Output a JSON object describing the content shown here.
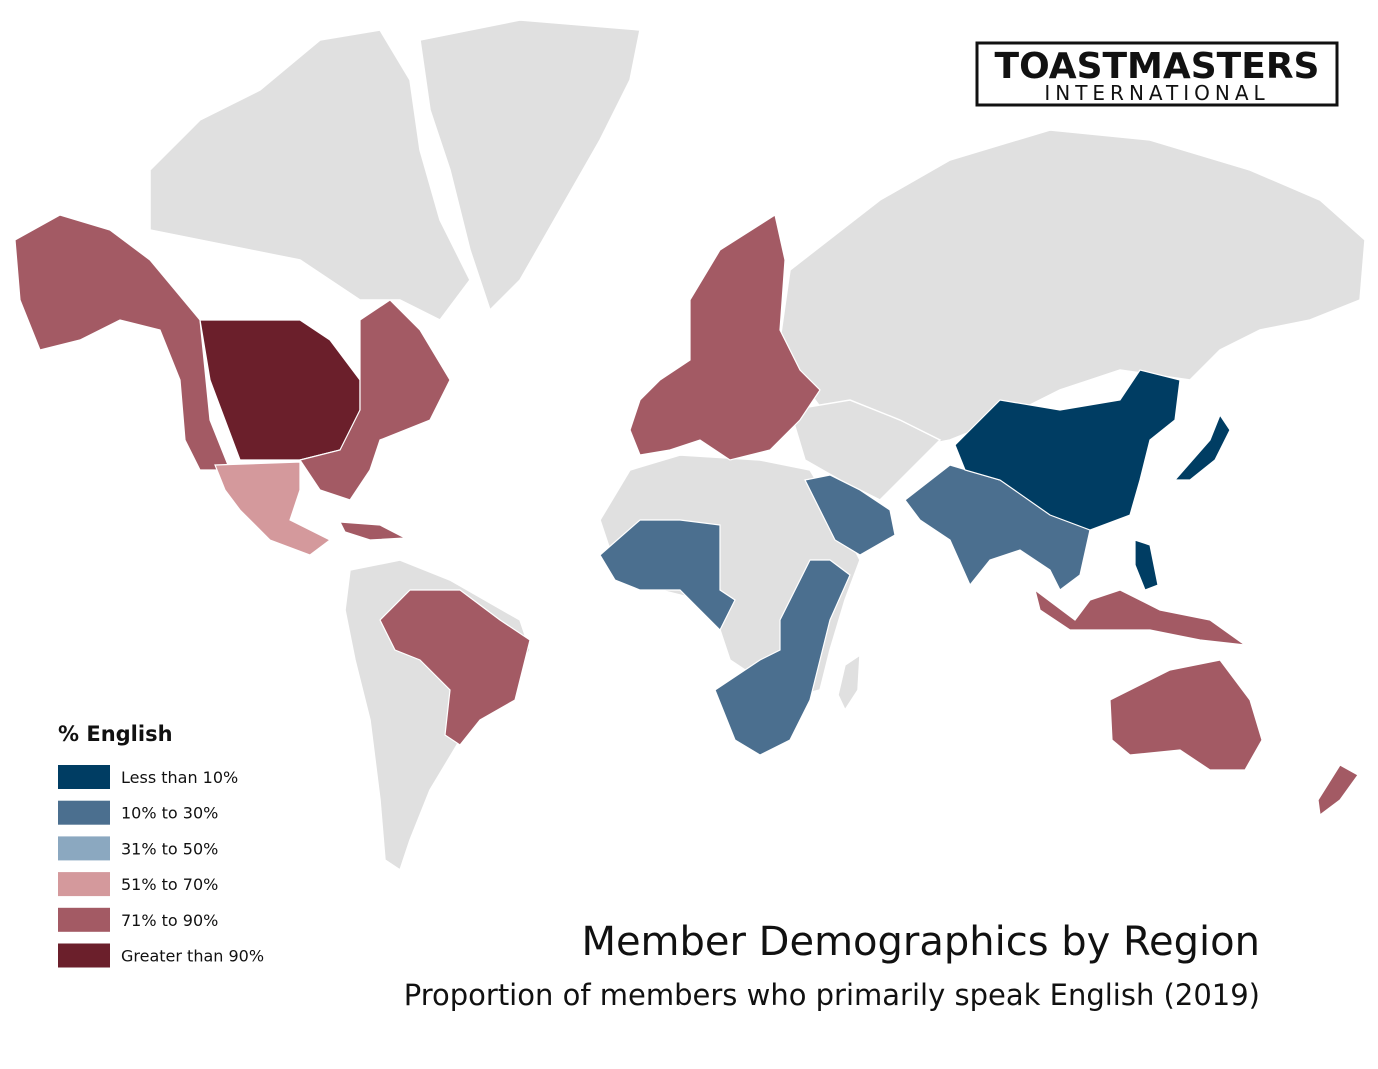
{
  "logo": {
    "name": "TOASTMASTERS",
    "subname": "INTERNATIONAL"
  },
  "legend": {
    "title": "% English",
    "items": [
      {
        "label": "Less than 10%",
        "color": "#003d63"
      },
      {
        "label": "10% to 30%",
        "color": "#4b6f8f"
      },
      {
        "label": "31% to 50%",
        "color": "#8ba8c0"
      },
      {
        "label": "51% to 70%",
        "color": "#d4999c"
      },
      {
        "label": "71% to 90%",
        "color": "#a35a64"
      },
      {
        "label": "Greater than 90%",
        "color": "#6b1f2b"
      }
    ]
  },
  "title": "Member Demographics by Region",
  "subtitle": "Proportion of members who primarily speak English (2019)"
}
